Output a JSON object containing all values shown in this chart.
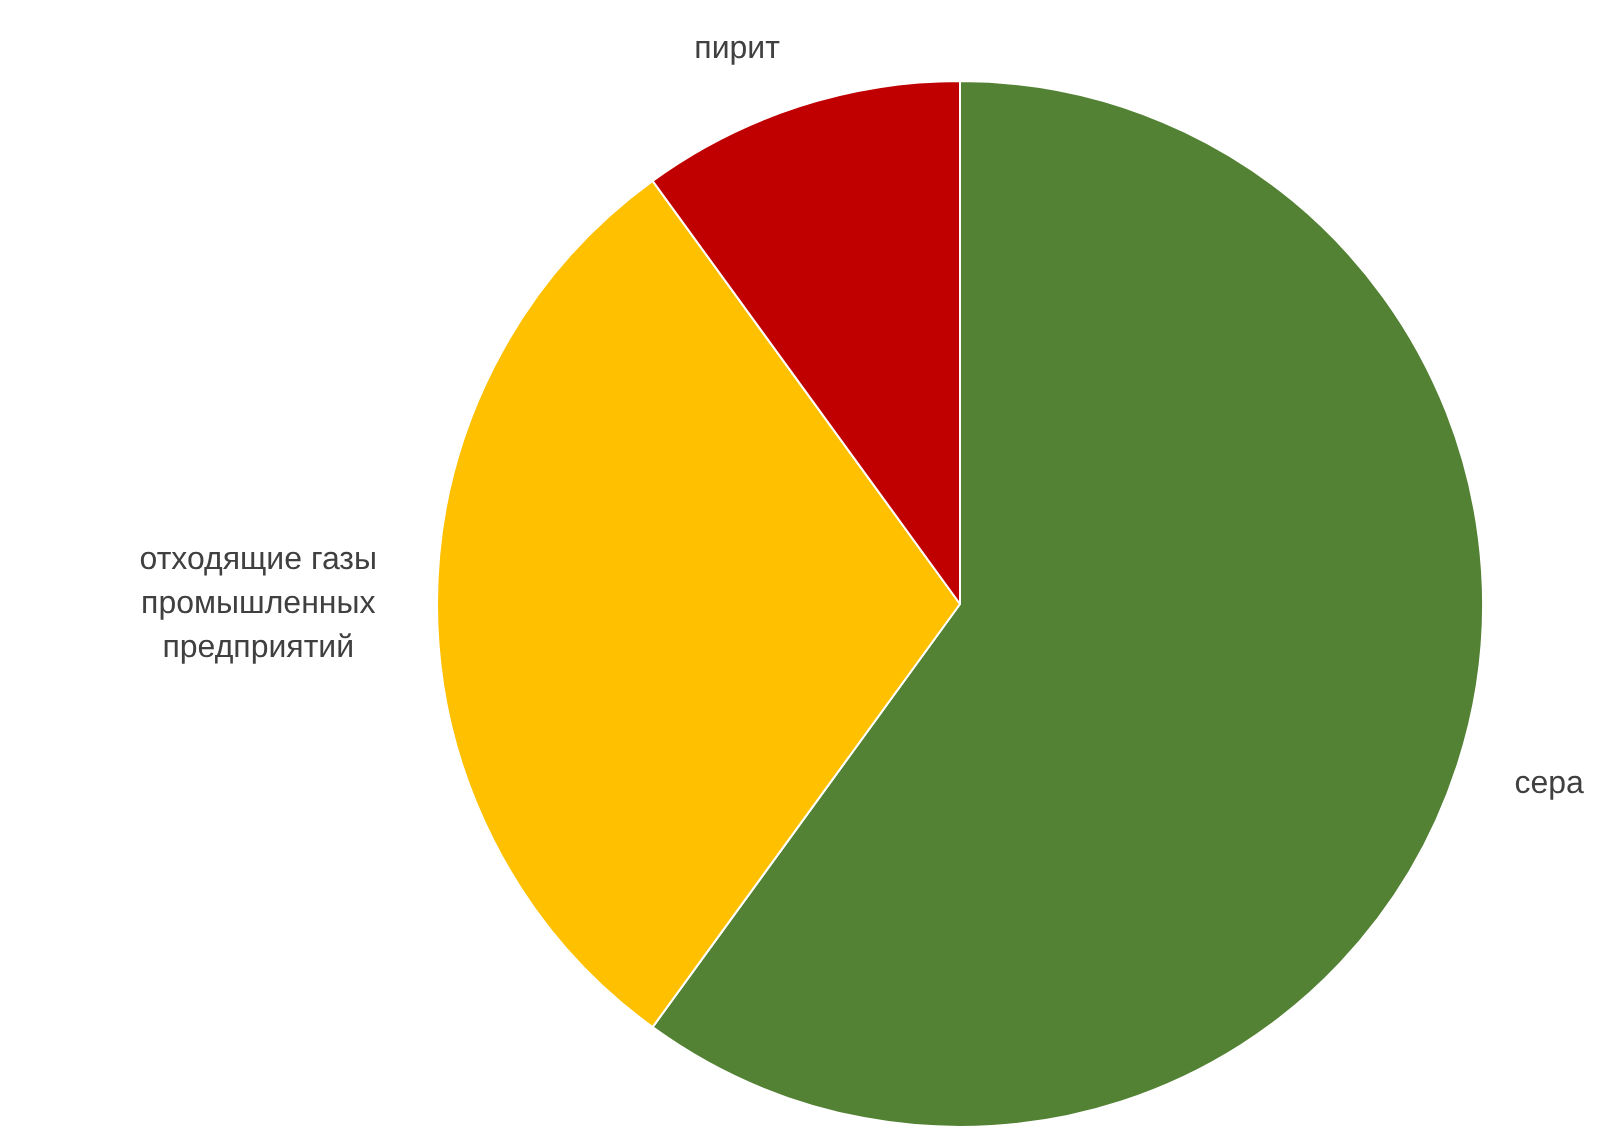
{
  "chart_data": {
    "type": "pie",
    "categories": [
      "сера",
      "отходящие газы промышленных предприятий",
      "пирит"
    ],
    "values": [
      60,
      30,
      10
    ],
    "colors": [
      "#548235",
      "#ffc000",
      "#c00000"
    ],
    "legend": false
  }
}
